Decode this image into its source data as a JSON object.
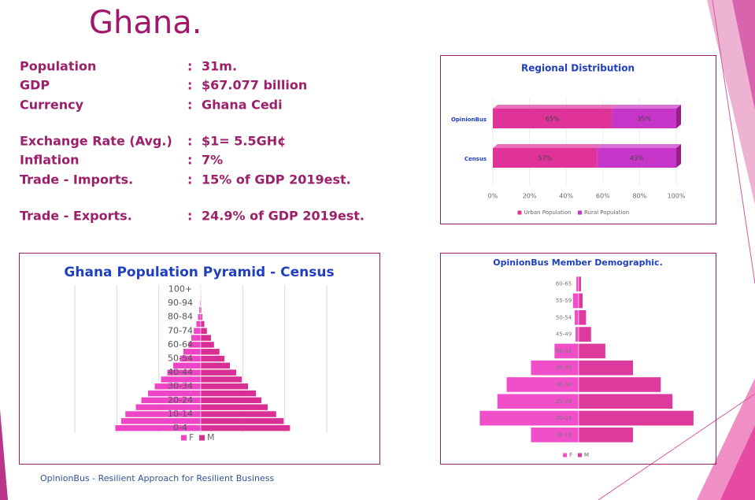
{
  "header": {
    "title": "Ghana."
  },
  "separator": ":",
  "facts": [
    {
      "label": "Population",
      "value": "31m."
    },
    {
      "label": "GDP",
      "value": "$67.077 billion"
    },
    {
      "label": "Currency",
      "value": "Ghana Cedi"
    },
    {
      "label": "Exchange Rate (Avg.)",
      "value": "$1= 5.5GH¢"
    },
    {
      "label": "Inflation",
      "value": "7%"
    },
    {
      "label": "Trade - Imports.",
      "value": "15% of GDP 2019est."
    },
    {
      "label": "Trade - Exports.",
      "value": "24.9% of GDP 2019est."
    }
  ],
  "footer": "OpinionBus - Resilient Approach for Resilient Business",
  "chart_data": [
    {
      "type": "bar",
      "orientation": "horizontal",
      "stacked": true,
      "title": "Regional Distribution",
      "categories": [
        "OpinionBus",
        "Census"
      ],
      "series": [
        {
          "name": "Urban Population",
          "color": "#e0339a",
          "values": [
            65,
            57
          ],
          "value_labels": [
            "65%",
            "57%"
          ]
        },
        {
          "name": "Rural Population",
          "color": "#c836c9",
          "values": [
            35,
            43
          ],
          "value_labels": [
            "35%",
            "43%"
          ]
        }
      ],
      "xlim": [
        0,
        100
      ],
      "xticks": [
        {
          "value": 0,
          "label": "0%"
        },
        {
          "value": 20,
          "label": "20%"
        },
        {
          "value": 40,
          "label": "40%"
        },
        {
          "value": 60,
          "label": "60%"
        },
        {
          "value": 80,
          "label": "80%"
        },
        {
          "value": 100,
          "label": "100%"
        }
      ],
      "legend": "bottom"
    },
    {
      "type": "pyramid",
      "title": "Ghana Population Pyramid - Census",
      "categories": [
        "0-4",
        null,
        "10-14",
        null,
        "20-24",
        null,
        "30-34",
        null,
        "40-44",
        null,
        "50-54",
        null,
        "60-64",
        null,
        "70-74",
        null,
        "80-84",
        null,
        "90-94",
        null,
        "100+"
      ],
      "series": [
        {
          "name": "F",
          "color": "#ee45c6",
          "values": [
            2.04,
            1.9,
            1.8,
            1.55,
            1.42,
            1.26,
            1.1,
            0.95,
            0.8,
            0.66,
            0.5,
            0.42,
            0.3,
            0.23,
            0.17,
            0.11,
            0.07,
            0.04,
            0.02,
            0.01,
            0.01
          ]
        },
        {
          "name": "M",
          "color": "#d92f95",
          "values": [
            2.13,
            1.98,
            1.8,
            1.6,
            1.45,
            1.32,
            1.13,
            0.98,
            0.85,
            0.7,
            0.57,
            0.45,
            0.32,
            0.25,
            0.15,
            0.09,
            0.04,
            0.02,
            0.01,
            0.01,
            0
          ]
        }
      ],
      "xlim": [
        -3,
        3
      ],
      "grid": true,
      "legend": "bottom"
    },
    {
      "type": "pyramid",
      "title": "OpinionBus Member Demographic.",
      "categories": [
        "18-19",
        "20-24",
        "25-29",
        "30-34",
        "35-39",
        "40-44",
        "45-49",
        "50-54",
        "55-59",
        "60-65"
      ],
      "series": [
        {
          "name": "F",
          "color": "#f04fc9",
          "values": [
            5.7,
            11.8,
            9.7,
            8.6,
            5.7,
            2.9,
            0.4,
            0.5,
            0.7,
            0.3
          ]
        },
        {
          "name": "M",
          "color": "#dd3a9d",
          "values": [
            6.5,
            13.7,
            11.2,
            9.8,
            6.5,
            3.2,
            1.5,
            0.9,
            0.5,
            0.3
          ]
        }
      ],
      "xlim": [
        -15,
        15
      ],
      "grid": false,
      "legend": "bottom"
    }
  ]
}
